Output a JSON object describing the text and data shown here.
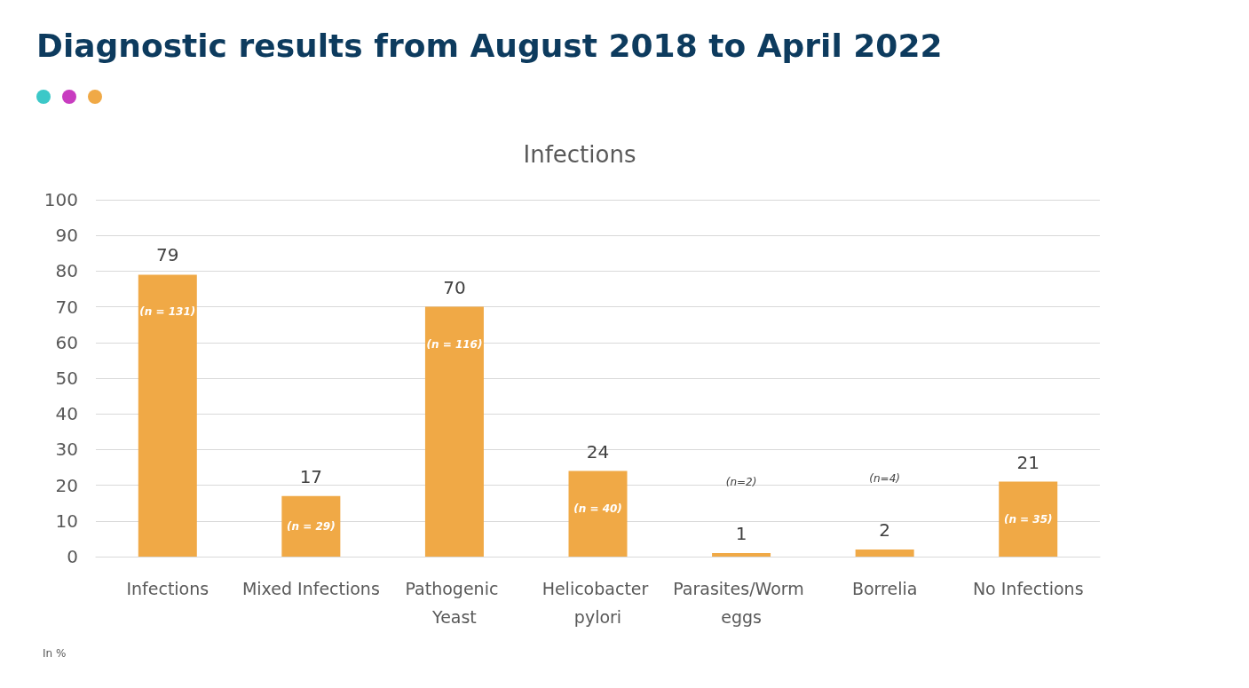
{
  "chart_data": {
    "type": "bar",
    "title": "Diagnostic results from August 2018 to April 2022",
    "subtitle": "Infections",
    "categories": [
      "Infections",
      "Mixed Infections",
      "Pathogenic Yeast",
      "Helicobacter pylori",
      "Parasites/Worm eggs",
      "Borrelia",
      "No Infections"
    ],
    "values": [
      79,
      17,
      70,
      24,
      1,
      2,
      21
    ],
    "color": "#f0a946",
    "ylim": [
      0,
      100
    ],
    "yticks": [
      0,
      10,
      20,
      30,
      40,
      50,
      60,
      70,
      80,
      90,
      100
    ],
    "grid": "y",
    "data_labels": true,
    "annotations": [
      "(n = 131)",
      "(n = 29)",
      "(n = 116)",
      "(n = 40)",
      "(n=2)",
      "(n=4)",
      "(n = 35)",
      "In %"
    ]
  }
}
